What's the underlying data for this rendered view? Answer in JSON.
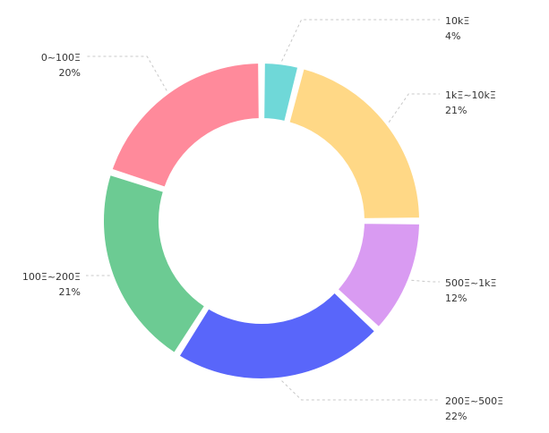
{
  "chart_data": {
    "type": "pie",
    "variant": "donut",
    "legend": "none",
    "slices": [
      {
        "label": "10kΞ",
        "pct_label": "4%",
        "value": 4,
        "color": "#6fd8d8",
        "side": "right"
      },
      {
        "label": "1kΞ~10kΞ",
        "pct_label": "21%",
        "value": 21,
        "color": "#ffd886",
        "side": "right"
      },
      {
        "label": "500Ξ~1kΞ",
        "pct_label": "12%",
        "value": 12,
        "color": "#d99bf2",
        "side": "right"
      },
      {
        "label": "200Ξ~500Ξ",
        "pct_label": "22%",
        "value": 22,
        "color": "#5966fa",
        "side": "right"
      },
      {
        "label": "100Ξ~200Ξ",
        "pct_label": "21%",
        "value": 21,
        "color": "#6ccb93",
        "side": "left"
      },
      {
        "label": "0~100Ξ",
        "pct_label": "20%",
        "value": 20,
        "color": "#ff8a9b",
        "side": "left"
      }
    ]
  }
}
